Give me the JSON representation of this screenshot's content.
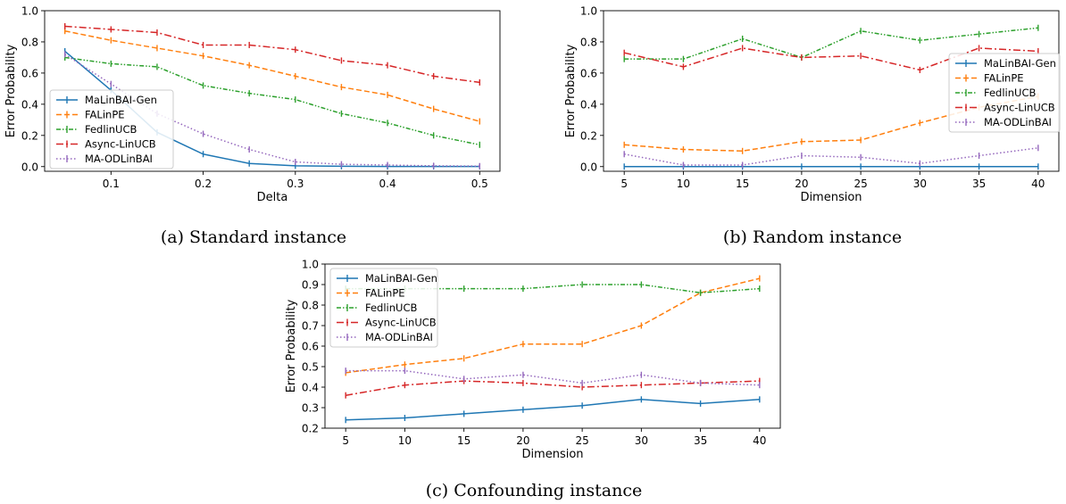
{
  "styles": {
    "MaLinBAI-Gen": {
      "color": "#1f77b4",
      "dash": ""
    },
    "FALinPE": {
      "color": "#ff7f0e",
      "dash": "6,3"
    },
    "FedlinUCB": {
      "color": "#2ca02c",
      "dash": "5,2,1.5,2,1.5,2"
    },
    "Async-LinUCB": {
      "color": "#d62728",
      "dash": "8,3,2,3"
    },
    "MA-ODLinBAI": {
      "color": "#9467bd",
      "dash": "1.5,2.5"
    }
  },
  "chart_data": [
    {
      "type": "line",
      "caption": "(a) Standard instance",
      "xlabel": "Delta",
      "ylabel": "Error Probability",
      "xlim": [
        0.028,
        0.522
      ],
      "ylim": [
        -0.03,
        1.0
      ],
      "xticks": [
        0.1,
        0.2,
        0.3,
        0.4,
        0.5
      ],
      "yticks": [
        0.0,
        0.2,
        0.4,
        0.6,
        0.8,
        1.0
      ],
      "xtick_labels": [
        "0.1",
        "0.2",
        "0.3",
        "0.4",
        "0.5"
      ],
      "ytick_labels": [
        "0.0",
        "0.2",
        "0.4",
        "0.6",
        "0.8",
        "1.0"
      ],
      "legend_position": "bottom-left",
      "x": [
        0.05,
        0.1,
        0.15,
        0.2,
        0.25,
        0.3,
        0.35,
        0.4,
        0.45,
        0.5
      ],
      "series": [
        {
          "name": "MaLinBAI-Gen",
          "values": [
            0.74,
            0.49,
            0.22,
            0.08,
            0.02,
            0.005,
            0.002,
            0.001,
            0.001,
            0.001
          ]
        },
        {
          "name": "FALinPE",
          "values": [
            0.87,
            0.81,
            0.76,
            0.71,
            0.65,
            0.58,
            0.51,
            0.46,
            0.37,
            0.29
          ]
        },
        {
          "name": "FedlinUCB",
          "values": [
            0.7,
            0.66,
            0.64,
            0.52,
            0.47,
            0.43,
            0.34,
            0.28,
            0.2,
            0.14
          ]
        },
        {
          "name": "Async-LinUCB",
          "values": [
            0.9,
            0.88,
            0.86,
            0.78,
            0.78,
            0.75,
            0.68,
            0.65,
            0.58,
            0.54
          ]
        },
        {
          "name": "MA-ODLinBAI",
          "values": [
            0.72,
            0.53,
            0.34,
            0.21,
            0.11,
            0.03,
            0.015,
            0.01,
            0.005,
            0.003
          ]
        }
      ]
    },
    {
      "type": "line",
      "caption": "(b) Random instance",
      "xlabel": "Dimension",
      "ylabel": "Error Probability",
      "xlim": [
        3.25,
        41.75
      ],
      "ylim": [
        -0.03,
        1.0
      ],
      "xticks": [
        5,
        10,
        15,
        20,
        25,
        30,
        35,
        40
      ],
      "yticks": [
        0.0,
        0.2,
        0.4,
        0.6,
        0.8,
        1.0
      ],
      "xtick_labels": [
        "5",
        "10",
        "15",
        "20",
        "25",
        "30",
        "35",
        "40"
      ],
      "ytick_labels": [
        "0.0",
        "0.2",
        "0.4",
        "0.6",
        "0.8",
        "1.0"
      ],
      "legend_position": "right",
      "x": [
        5,
        10,
        15,
        20,
        25,
        30,
        35,
        40
      ],
      "series": [
        {
          "name": "MaLinBAI-Gen",
          "values": [
            0.0,
            0.0,
            0.0,
            0.0,
            0.0,
            0.0,
            0.0,
            0.0
          ]
        },
        {
          "name": "FALinPE",
          "values": [
            0.14,
            0.11,
            0.1,
            0.16,
            0.17,
            0.28,
            0.38,
            0.45
          ]
        },
        {
          "name": "FedlinUCB",
          "values": [
            0.69,
            0.69,
            0.82,
            0.7,
            0.87,
            0.81,
            0.85,
            0.89
          ]
        },
        {
          "name": "Async-LinUCB",
          "values": [
            0.73,
            0.64,
            0.76,
            0.7,
            0.71,
            0.62,
            0.76,
            0.74
          ]
        },
        {
          "name": "MA-ODLinBAI",
          "values": [
            0.08,
            0.01,
            0.01,
            0.07,
            0.06,
            0.02,
            0.07,
            0.12
          ]
        }
      ]
    },
    {
      "type": "line",
      "caption": "(c) Confounding instance",
      "xlabel": "Dimension",
      "ylabel": "Error Probability",
      "xlim": [
        3.25,
        41.75
      ],
      "ylim": [
        0.2,
        1.0
      ],
      "xticks": [
        5,
        10,
        15,
        20,
        25,
        30,
        35,
        40
      ],
      "yticks": [
        0.2,
        0.3,
        0.4,
        0.5,
        0.6,
        0.7,
        0.8,
        0.9,
        1.0
      ],
      "xtick_labels": [
        "5",
        "10",
        "15",
        "20",
        "25",
        "30",
        "35",
        "40"
      ],
      "ytick_labels": [
        "0.2",
        "0.3",
        "0.4",
        "0.5",
        "0.6",
        "0.7",
        "0.8",
        "0.9",
        "1.0"
      ],
      "legend_position": "top-left",
      "x": [
        5,
        10,
        15,
        20,
        25,
        30,
        35,
        40
      ],
      "series": [
        {
          "name": "MaLinBAI-Gen",
          "values": [
            0.24,
            0.25,
            0.27,
            0.29,
            0.31,
            0.34,
            0.32,
            0.34
          ]
        },
        {
          "name": "FALinPE",
          "values": [
            0.47,
            0.51,
            0.54,
            0.61,
            0.61,
            0.7,
            0.86,
            0.93
          ]
        },
        {
          "name": "FedlinUCB",
          "values": [
            0.88,
            0.88,
            0.88,
            0.88,
            0.9,
            0.9,
            0.86,
            0.88
          ]
        },
        {
          "name": "Async-LinUCB",
          "values": [
            0.36,
            0.41,
            0.43,
            0.42,
            0.4,
            0.41,
            0.42,
            0.43
          ]
        },
        {
          "name": "MA-ODLinBAI",
          "values": [
            0.48,
            0.48,
            0.44,
            0.46,
            0.42,
            0.46,
            0.42,
            0.41
          ]
        }
      ]
    }
  ]
}
